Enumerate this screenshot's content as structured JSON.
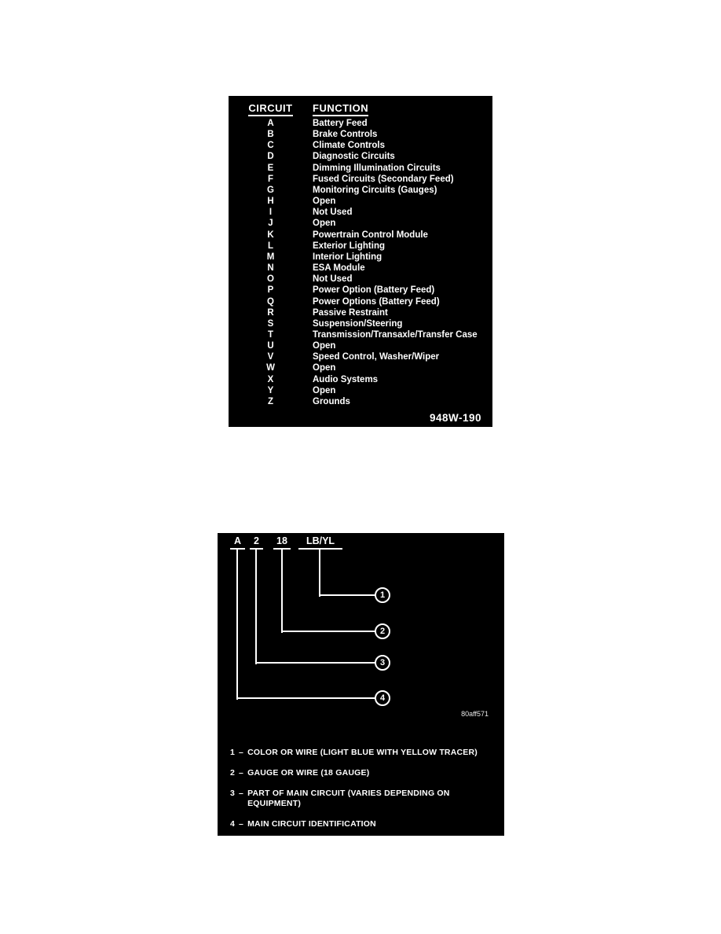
{
  "colors": {
    "page_bg": "#ffffff",
    "panel_bg": "#000000",
    "panel_text": "#ffffff"
  },
  "circuit_function_table": {
    "header": {
      "circuit": "CIRCUIT",
      "function": "FUNCTION"
    },
    "rows": [
      {
        "circuit": "A",
        "function": "Battery Feed"
      },
      {
        "circuit": "B",
        "function": "Brake Controls"
      },
      {
        "circuit": "C",
        "function": "Climate Controls"
      },
      {
        "circuit": "D",
        "function": "Diagnostic Circuits"
      },
      {
        "circuit": "E",
        "function": "Dimming Illumination Circuits"
      },
      {
        "circuit": "F",
        "function": "Fused Circuits (Secondary Feed)"
      },
      {
        "circuit": "G",
        "function": "Monitoring Circuits (Gauges)"
      },
      {
        "circuit": "H",
        "function": "Open"
      },
      {
        "circuit": "I",
        "function": "Not Used"
      },
      {
        "circuit": "J",
        "function": "Open"
      },
      {
        "circuit": "K",
        "function": "Powertrain Control Module"
      },
      {
        "circuit": "L",
        "function": "Exterior Lighting"
      },
      {
        "circuit": "M",
        "function": "Interior Lighting"
      },
      {
        "circuit": "N",
        "function": "ESA Module"
      },
      {
        "circuit": "O",
        "function": "Not Used"
      },
      {
        "circuit": "P",
        "function": "Power Option (Battery Feed)"
      },
      {
        "circuit": "Q",
        "function": "Power Options (Battery Feed)"
      },
      {
        "circuit": "R",
        "function": "Passive Restraint"
      },
      {
        "circuit": "S",
        "function": "Suspension/Steering"
      },
      {
        "circuit": "T",
        "function": "Transmission/Transaxle/Transfer Case"
      },
      {
        "circuit": "U",
        "function": "Open"
      },
      {
        "circuit": "V",
        "function": "Speed Control, Washer/Wiper"
      },
      {
        "circuit": "W",
        "function": "Open"
      },
      {
        "circuit": "X",
        "function": "Audio Systems"
      },
      {
        "circuit": "Y",
        "function": "Open"
      },
      {
        "circuit": "Z",
        "function": "Grounds"
      }
    ],
    "figure_code": "948W-190"
  },
  "wire_identification_diagram": {
    "code_parts": [
      {
        "code": "A",
        "callout": "4"
      },
      {
        "code": "2",
        "callout": "3"
      },
      {
        "code": "18",
        "callout": "2"
      },
      {
        "code": "LB/YL",
        "callout": "1"
      }
    ],
    "figure_code": "80aff571",
    "legend": [
      {
        "num": "1",
        "sep": "–",
        "text": "COLOR OR WIRE (LIGHT BLUE WITH YELLOW TRACER)"
      },
      {
        "num": "2",
        "sep": "–",
        "text": "GAUGE OR WIRE (18 GAUGE)"
      },
      {
        "num": "3",
        "sep": "–",
        "text": "PART OF MAIN CIRCUIT (VARIES DEPENDING ON\nEQUIPMENT)"
      },
      {
        "num": "4",
        "sep": "–",
        "text": "MAIN CIRCUIT IDENTIFICATION"
      }
    ]
  }
}
